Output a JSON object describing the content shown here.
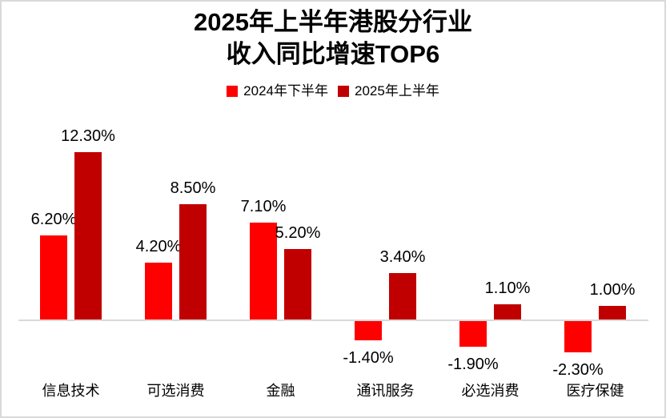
{
  "title": {
    "line1": "2025年上半年港股分行业",
    "line2": "收入同比增速TOP6"
  },
  "legend": [
    {
      "label": "2024年下半年",
      "color": "#FF0000"
    },
    {
      "label": "2025年上半年",
      "color": "#C00000"
    }
  ],
  "chart_data": {
    "type": "bar",
    "title": "2025年上半年港股分行业 收入同比增速TOP6",
    "categories": [
      "信息技术",
      "可选消费",
      "金融",
      "通讯服务",
      "必选消费",
      "医疗保健"
    ],
    "series": [
      {
        "name": "2024年下半年",
        "color": "#FF0000",
        "values": [
          6.2,
          4.2,
          7.1,
          -1.4,
          -1.9,
          -2.3
        ],
        "labels": [
          "6.20%",
          "4.20%",
          "7.10%",
          "-1.40%",
          "-1.90%",
          "-2.30%"
        ]
      },
      {
        "name": "2025年上半年",
        "color": "#C00000",
        "values": [
          12.3,
          8.5,
          5.2,
          3.4,
          1.1,
          1.0
        ],
        "labels": [
          "12.30%",
          "8.50%",
          "5.20%",
          "3.40%",
          "1.10%",
          "1.00%"
        ]
      }
    ],
    "xlabel": "",
    "ylabel": "",
    "ylim": [
      -4,
      13.5
    ],
    "grid": false,
    "legend_position": "top",
    "value_label_format": "0.00%",
    "axis_color": "#D9D9D9"
  },
  "colors": {
    "background": "#FFFFFF",
    "frame_border": "#D9D9D9",
    "text": "#000000"
  }
}
